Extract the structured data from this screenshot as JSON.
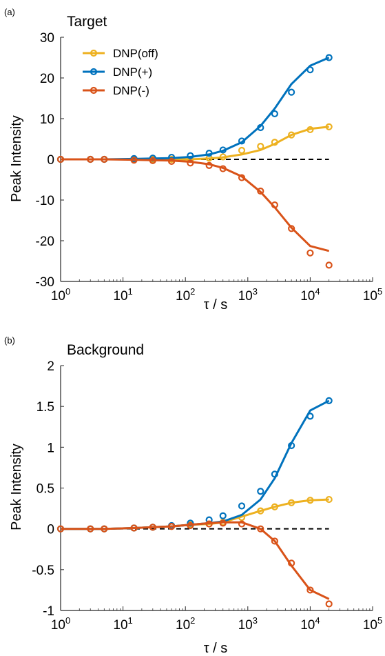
{
  "chart_data": [
    {
      "type": "line",
      "panel_label": "(a)",
      "title": "Target",
      "xlabel": "τ / s",
      "ylabel": "Peak Intensity",
      "xscale": "log",
      "xlim": [
        1,
        100000
      ],
      "ylim": [
        -30,
        30
      ],
      "x_ticks": [
        1,
        10,
        100,
        1000,
        10000,
        100000
      ],
      "y_ticks": [
        -30,
        -20,
        -10,
        0,
        10,
        20,
        30
      ],
      "y_tick_labels": [
        "-30",
        "-20",
        "-10",
        "0",
        "10",
        "20",
        "30"
      ],
      "reference_line": {
        "y": 0,
        "style": "dashed",
        "color": "#000000"
      },
      "legend": {
        "position": "top-left",
        "entries": [
          "DNP(off)",
          "DNP(+)",
          "DNP(-)"
        ]
      },
      "grid": false,
      "series": [
        {
          "name": "DNP(off)",
          "color": "#EDB120",
          "points_x": [
            1,
            3,
            5,
            15,
            30,
            60,
            120,
            240,
            400,
            800,
            1600,
            2700,
            5000,
            10000,
            20000
          ],
          "points_y": [
            0,
            0,
            0,
            0,
            0,
            0,
            0,
            0.3,
            0.6,
            2.2,
            3.2,
            4.2,
            6.0,
            7.3,
            8.0
          ],
          "fit_x": [
            1,
            3,
            5,
            15,
            30,
            60,
            120,
            240,
            400,
            800,
            1600,
            2700,
            5000,
            10000,
            20000
          ],
          "fit_y": [
            0,
            0,
            0,
            0,
            0,
            0,
            0,
            0.2,
            0.5,
            1.2,
            2.3,
            3.8,
            6.0,
            7.5,
            8.0
          ]
        },
        {
          "name": "DNP(+)",
          "color": "#0072BD",
          "points_x": [
            1,
            3,
            5,
            15,
            30,
            60,
            120,
            240,
            400,
            800,
            1600,
            2700,
            5000,
            10000,
            20000
          ],
          "points_y": [
            0,
            0,
            0,
            0.2,
            0.3,
            0.5,
            0.9,
            1.5,
            2.3,
            4.5,
            7.8,
            11.2,
            16.5,
            22.0,
            25.0
          ],
          "fit_x": [
            1,
            3,
            5,
            15,
            30,
            60,
            120,
            240,
            400,
            800,
            1600,
            2700,
            5000,
            10000,
            20000
          ],
          "fit_y": [
            0,
            0,
            0,
            0.1,
            0.2,
            0.3,
            0.6,
            1.2,
            2.1,
            4.2,
            8.2,
            12.5,
            18.5,
            23.0,
            25.0
          ]
        },
        {
          "name": "DNP(-)",
          "color": "#D95319",
          "points_x": [
            1,
            3,
            5,
            15,
            30,
            60,
            120,
            240,
            400,
            800,
            1600,
            2700,
            5000,
            10000,
            20000
          ],
          "points_y": [
            0,
            0,
            0,
            -0.2,
            -0.3,
            -0.5,
            -0.9,
            -1.5,
            -2.3,
            -4.5,
            -7.8,
            -11.2,
            -17.0,
            -23.0,
            -26.0
          ],
          "fit_x": [
            1,
            3,
            5,
            15,
            30,
            60,
            120,
            240,
            400,
            800,
            1600,
            2700,
            5000,
            10000,
            20000
          ],
          "fit_y": [
            0,
            0,
            0,
            -0.1,
            -0.2,
            -0.3,
            -0.6,
            -1.2,
            -2.1,
            -4.2,
            -8.0,
            -11.8,
            -16.8,
            -21.3,
            -22.5
          ]
        }
      ]
    },
    {
      "type": "line",
      "panel_label": "(b)",
      "title": "Background",
      "xlabel": "τ / s",
      "ylabel": "Peak Intensity",
      "xscale": "log",
      "xlim": [
        1,
        100000
      ],
      "ylim": [
        -1,
        2
      ],
      "x_ticks": [
        1,
        10,
        100,
        1000,
        10000,
        100000
      ],
      "y_ticks": [
        -1,
        -0.5,
        0,
        0.5,
        1,
        1.5,
        2
      ],
      "y_tick_labels": [
        "-1",
        "-0.5",
        "0",
        "0.5",
        "1",
        "1.5",
        "2"
      ],
      "reference_line": {
        "y": 0,
        "style": "dashed",
        "color": "#000000"
      },
      "legend": null,
      "grid": false,
      "series": [
        {
          "name": "DNP(off)",
          "color": "#EDB120",
          "points_x": [
            1,
            3,
            5,
            15,
            30,
            60,
            120,
            240,
            400,
            800,
            1600,
            2700,
            5000,
            10000,
            20000
          ],
          "points_y": [
            0,
            0,
            0,
            0.01,
            0.02,
            0.03,
            0.05,
            0.06,
            0.08,
            0.14,
            0.22,
            0.27,
            0.32,
            0.35,
            0.36
          ],
          "fit_x": [
            1,
            3,
            5,
            15,
            30,
            60,
            120,
            240,
            400,
            800,
            1600,
            2700,
            5000,
            10000,
            20000
          ],
          "fit_y": [
            0,
            0,
            0,
            0.01,
            0.02,
            0.03,
            0.05,
            0.06,
            0.08,
            0.15,
            0.22,
            0.27,
            0.32,
            0.35,
            0.36
          ]
        },
        {
          "name": "DNP(+)",
          "color": "#0072BD",
          "points_x": [
            1,
            3,
            5,
            15,
            30,
            60,
            120,
            240,
            400,
            800,
            1600,
            2700,
            5000,
            10000,
            20000
          ],
          "points_y": [
            0,
            0,
            0,
            0.01,
            0.02,
            0.04,
            0.07,
            0.11,
            0.16,
            0.28,
            0.46,
            0.67,
            1.02,
            1.38,
            1.57
          ],
          "fit_x": [
            1,
            3,
            5,
            15,
            30,
            60,
            120,
            240,
            400,
            800,
            1600,
            2700,
            5000,
            10000,
            20000
          ],
          "fit_y": [
            0,
            0,
            0,
            0.01,
            0.02,
            0.03,
            0.05,
            0.07,
            0.09,
            0.17,
            0.36,
            0.62,
            1.05,
            1.45,
            1.57
          ]
        },
        {
          "name": "DNP(-)",
          "color": "#D95319",
          "points_x": [
            1,
            3,
            5,
            15,
            30,
            60,
            120,
            240,
            400,
            800,
            1600,
            2700,
            5000,
            10000,
            20000
          ],
          "points_y": [
            0,
            0,
            0,
            0.01,
            0.02,
            0.03,
            0.04,
            0.06,
            0.07,
            0.06,
            0.0,
            -0.15,
            -0.42,
            -0.75,
            -0.92
          ],
          "fit_x": [
            1,
            3,
            5,
            15,
            30,
            60,
            120,
            240,
            400,
            800,
            1600,
            2700,
            5000,
            10000,
            20000
          ],
          "fit_y": [
            0,
            0,
            0,
            0.01,
            0.02,
            0.03,
            0.05,
            0.07,
            0.08,
            0.08,
            0.0,
            -0.15,
            -0.45,
            -0.75,
            -0.86
          ]
        }
      ]
    }
  ]
}
